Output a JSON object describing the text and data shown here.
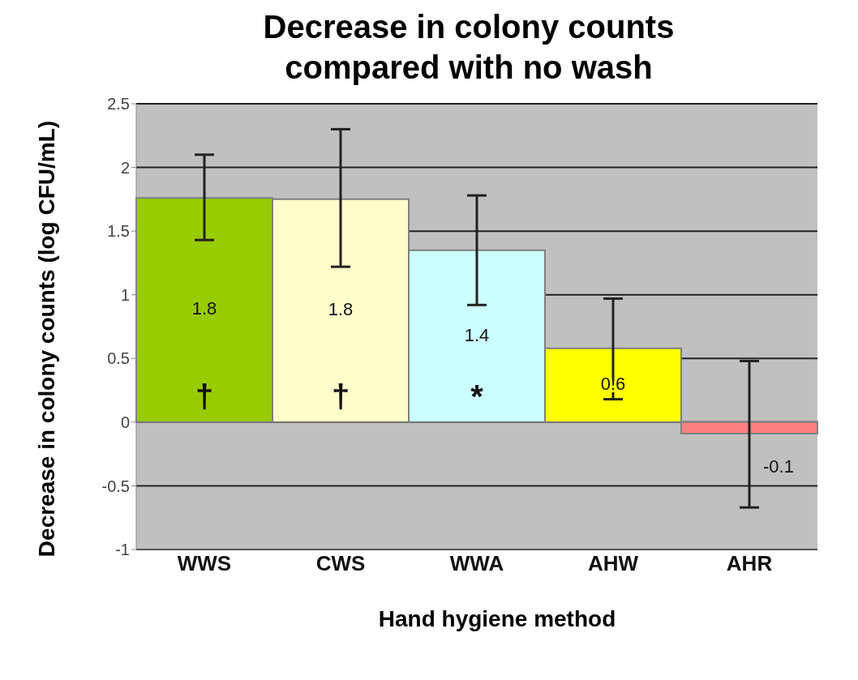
{
  "chart_data": {
    "type": "bar",
    "title": "Decrease in colony counts compared with no wash",
    "xlabel": "Hand hygiene method",
    "ylabel": "Decrease in colony counts (log CFU/mL)",
    "categories": [
      "WWS",
      "CWS",
      "WWA",
      "AHW",
      "AHR"
    ],
    "values": [
      1.76,
      1.75,
      1.35,
      0.58,
      -0.09
    ],
    "colors": [
      "#99cc00",
      "#ffffcc",
      "#ccffff",
      "#ffff00",
      "#ff8080"
    ],
    "errors": [
      [
        1.43,
        2.1
      ],
      [
        1.22,
        2.3
      ],
      [
        0.92,
        1.78
      ],
      [
        0.18,
        0.97
      ],
      [
        -0.67,
        0.48
      ]
    ],
    "value_labels": [
      "1.8",
      "1.8",
      "1.4",
      "0.6",
      "-0.1"
    ],
    "annotations": [
      "†",
      "†",
      "*"
    ],
    "ylim": [
      -1,
      2.5
    ],
    "yticks": [
      -1,
      -0.5,
      0,
      0.5,
      1,
      1.5,
      2,
      2.5
    ],
    "grid": "y",
    "legend": false
  }
}
